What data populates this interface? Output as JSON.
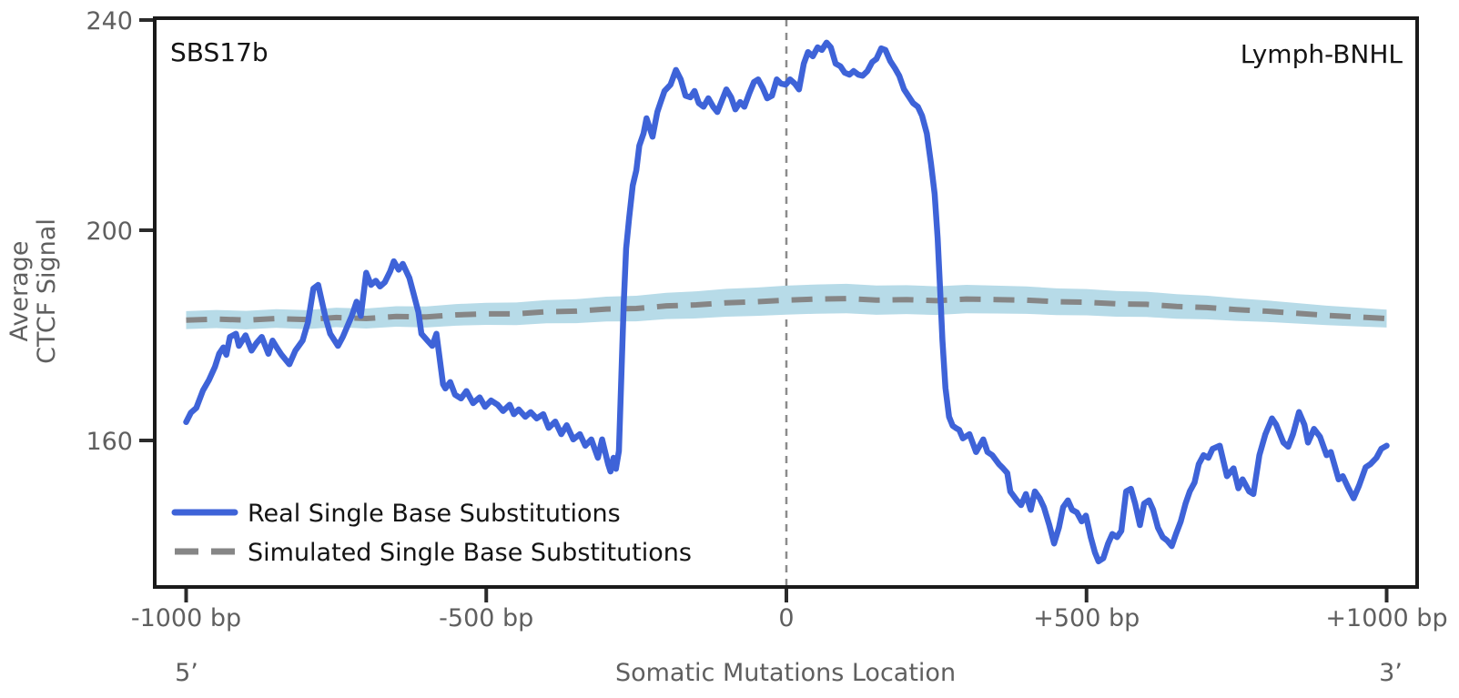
{
  "annotations": {
    "top_left": "SBS17b",
    "top_right": "Lymph-BNHL",
    "five_prime": "5’",
    "three_prime": "3’"
  },
  "colors": {
    "real_line": "#3E63D8",
    "simulated_line": "#868686",
    "confidence_band": "#B7DBE8",
    "spine": "#1a1a1a",
    "tick_mark": "#2b2b2b",
    "tick_label": "#5f5f5f",
    "zero_line": "#8c8c8c",
    "background": "#ffffff"
  },
  "chart_data": {
    "type": "line",
    "title": "",
    "xlabel": "Somatic Mutations Location",
    "ylabel": [
      "Average",
      "CTCF Signal"
    ],
    "xlim": [
      -1052,
      1051
    ],
    "ylim": [
      132.5,
      240.5
    ],
    "grid": false,
    "legend_position": "lower-left",
    "x_ticks": [
      {
        "value": -1000,
        "label": "-1000 bp"
      },
      {
        "value": -500,
        "label": "-500 bp"
      },
      {
        "value": 0,
        "label": "0"
      },
      {
        "value": 500,
        "label": "+500 bp"
      },
      {
        "value": 1000,
        "label": "+1000 bp"
      }
    ],
    "y_ticks": [
      {
        "value": 160,
        "label": "160"
      },
      {
        "value": 200,
        "label": "200"
      },
      {
        "value": 240,
        "label": "240"
      }
    ],
    "vline": {
      "x": 0,
      "style": "dashed",
      "color": "#8c8c8c"
    },
    "series": [
      {
        "name": "Real Single Base Substitutions",
        "style": "solid",
        "color": "#3E63D8",
        "linewidth": 6.5,
        "points": [
          [
            -1000,
            163.5
          ],
          [
            -992,
            165.3
          ],
          [
            -983,
            166.2
          ],
          [
            -972,
            169.5
          ],
          [
            -962,
            171.5
          ],
          [
            -952,
            174.0
          ],
          [
            -945,
            176.5
          ],
          [
            -938,
            177.7
          ],
          [
            -933,
            176.3
          ],
          [
            -927,
            179.7
          ],
          [
            -917,
            180.3
          ],
          [
            -912,
            178.0
          ],
          [
            -901,
            180.0
          ],
          [
            -891,
            177.1
          ],
          [
            -883,
            178.5
          ],
          [
            -874,
            179.7
          ],
          [
            -863,
            176.5
          ],
          [
            -856,
            179.0
          ],
          [
            -848,
            177.5
          ],
          [
            -841,
            176.3
          ],
          [
            -828,
            174.5
          ],
          [
            -818,
            177.1
          ],
          [
            -806,
            179.0
          ],
          [
            -797,
            182.5
          ],
          [
            -788,
            188.9
          ],
          [
            -780,
            189.6
          ],
          [
            -768,
            183.5
          ],
          [
            -760,
            180.3
          ],
          [
            -747,
            178.0
          ],
          [
            -739,
            179.7
          ],
          [
            -724,
            183.7
          ],
          [
            -716,
            186.4
          ],
          [
            -709,
            183.7
          ],
          [
            -700,
            191.9
          ],
          [
            -692,
            189.6
          ],
          [
            -684,
            190.4
          ],
          [
            -677,
            189.3
          ],
          [
            -669,
            190.1
          ],
          [
            -660,
            192.2
          ],
          [
            -654,
            194.1
          ],
          [
            -646,
            192.5
          ],
          [
            -639,
            193.6
          ],
          [
            -628,
            190.9
          ],
          [
            -621,
            187.9
          ],
          [
            -613,
            184.4
          ],
          [
            -608,
            180.3
          ],
          [
            -598,
            179.0
          ],
          [
            -590,
            178.0
          ],
          [
            -583,
            180.3
          ],
          [
            -572,
            170.7
          ],
          [
            -568,
            169.9
          ],
          [
            -560,
            171.1
          ],
          [
            -552,
            168.7
          ],
          [
            -542,
            168.0
          ],
          [
            -533,
            169.4
          ],
          [
            -522,
            167.1
          ],
          [
            -511,
            168.2
          ],
          [
            -502,
            166.4
          ],
          [
            -492,
            167.6
          ],
          [
            -481,
            166.8
          ],
          [
            -472,
            165.6
          ],
          [
            -461,
            166.8
          ],
          [
            -454,
            165.0
          ],
          [
            -446,
            165.9
          ],
          [
            -435,
            164.5
          ],
          [
            -426,
            165.4
          ],
          [
            -416,
            164.2
          ],
          [
            -405,
            165.0
          ],
          [
            -396,
            162.4
          ],
          [
            -385,
            163.6
          ],
          [
            -375,
            161.2
          ],
          [
            -366,
            162.9
          ],
          [
            -355,
            160.2
          ],
          [
            -344,
            161.2
          ],
          [
            -335,
            159.0
          ],
          [
            -325,
            160.2
          ],
          [
            -314,
            156.7
          ],
          [
            -307,
            160.2
          ],
          [
            -297,
            155.5
          ],
          [
            -293,
            154.1
          ],
          [
            -288,
            156.7
          ],
          [
            -284,
            154.6
          ],
          [
            -279,
            158.0
          ],
          [
            -275,
            172.0
          ],
          [
            -271,
            186.0
          ],
          [
            -267,
            196.5
          ],
          [
            -262,
            202.3
          ],
          [
            -256,
            208.5
          ],
          [
            -250,
            211.4
          ],
          [
            -245,
            216.1
          ],
          [
            -238,
            218.4
          ],
          [
            -233,
            221.3
          ],
          [
            -223,
            217.8
          ],
          [
            -215,
            222.5
          ],
          [
            -210,
            224.2
          ],
          [
            -203,
            226.5
          ],
          [
            -193,
            227.7
          ],
          [
            -184,
            230.5
          ],
          [
            -176,
            228.7
          ],
          [
            -168,
            225.6
          ],
          [
            -160,
            225.3
          ],
          [
            -153,
            226.5
          ],
          [
            -146,
            224.2
          ],
          [
            -138,
            223.5
          ],
          [
            -130,
            225.1
          ],
          [
            -122,
            223.5
          ],
          [
            -115,
            222.5
          ],
          [
            -107,
            224.8
          ],
          [
            -100,
            226.8
          ],
          [
            -92,
            225.3
          ],
          [
            -85,
            223.0
          ],
          [
            -77,
            224.4
          ],
          [
            -70,
            223.5
          ],
          [
            -62,
            226.0
          ],
          [
            -54,
            228.2
          ],
          [
            -47,
            228.7
          ],
          [
            -39,
            227.0
          ],
          [
            -32,
            225.1
          ],
          [
            -24,
            225.6
          ],
          [
            -16,
            228.7
          ],
          [
            -9,
            227.9
          ],
          [
            -1,
            227.7
          ],
          [
            6,
            228.7
          ],
          [
            14,
            227.9
          ],
          [
            21,
            226.8
          ],
          [
            29,
            231.7
          ],
          [
            36,
            233.9
          ],
          [
            44,
            233.1
          ],
          [
            52,
            234.8
          ],
          [
            59,
            234.3
          ],
          [
            67,
            235.7
          ],
          [
            74,
            234.8
          ],
          [
            82,
            231.7
          ],
          [
            90,
            231.2
          ],
          [
            97,
            230.0
          ],
          [
            105,
            229.6
          ],
          [
            112,
            230.3
          ],
          [
            120,
            229.6
          ],
          [
            127,
            229.4
          ],
          [
            135,
            230.3
          ],
          [
            143,
            232.0
          ],
          [
            150,
            232.6
          ],
          [
            158,
            234.6
          ],
          [
            165,
            234.3
          ],
          [
            173,
            232.2
          ],
          [
            181,
            230.8
          ],
          [
            188,
            229.4
          ],
          [
            196,
            226.8
          ],
          [
            203,
            225.6
          ],
          [
            211,
            224.2
          ],
          [
            219,
            223.5
          ],
          [
            226,
            221.8
          ],
          [
            234,
            218.4
          ],
          [
            241,
            212.6
          ],
          [
            247,
            206.9
          ],
          [
            252,
            198.5
          ],
          [
            256,
            189.0
          ],
          [
            260,
            179.0
          ],
          [
            265,
            170.0
          ],
          [
            271,
            164.5
          ],
          [
            277,
            162.8
          ],
          [
            282,
            162.4
          ],
          [
            288,
            162.0
          ],
          [
            294,
            160.4
          ],
          [
            305,
            161.2
          ],
          [
            316,
            157.8
          ],
          [
            328,
            160.2
          ],
          [
            335,
            157.8
          ],
          [
            343,
            157.2
          ],
          [
            354,
            155.5
          ],
          [
            361,
            154.7
          ],
          [
            368,
            153.8
          ],
          [
            373,
            150.3
          ],
          [
            384,
            148.6
          ],
          [
            391,
            147.7
          ],
          [
            399,
            149.8
          ],
          [
            407,
            146.8
          ],
          [
            414,
            150.3
          ],
          [
            422,
            149.0
          ],
          [
            429,
            147.3
          ],
          [
            438,
            143.9
          ],
          [
            446,
            140.4
          ],
          [
            454,
            143.4
          ],
          [
            461,
            147.3
          ],
          [
            469,
            148.6
          ],
          [
            476,
            146.8
          ],
          [
            484,
            146.3
          ],
          [
            492,
            144.6
          ],
          [
            499,
            145.7
          ],
          [
            507,
            141.6
          ],
          [
            514,
            138.7
          ],
          [
            520,
            137.0
          ],
          [
            528,
            137.6
          ],
          [
            536,
            140.4
          ],
          [
            543,
            142.2
          ],
          [
            551,
            141.6
          ],
          [
            558,
            142.8
          ],
          [
            566,
            150.3
          ],
          [
            574,
            150.8
          ],
          [
            581,
            148.0
          ],
          [
            589,
            143.9
          ],
          [
            596,
            148.0
          ],
          [
            604,
            148.6
          ],
          [
            611,
            146.8
          ],
          [
            619,
            143.4
          ],
          [
            627,
            141.6
          ],
          [
            634,
            141.0
          ],
          [
            642,
            139.9
          ],
          [
            649,
            142.2
          ],
          [
            657,
            144.6
          ],
          [
            665,
            148.0
          ],
          [
            672,
            150.3
          ],
          [
            680,
            152.0
          ],
          [
            687,
            155.5
          ],
          [
            695,
            157.2
          ],
          [
            703,
            156.7
          ],
          [
            710,
            158.4
          ],
          [
            722,
            159.0
          ],
          [
            734,
            153.2
          ],
          [
            745,
            154.7
          ],
          [
            753,
            150.9
          ],
          [
            760,
            152.6
          ],
          [
            771,
            150.3
          ],
          [
            778,
            149.8
          ],
          [
            788,
            157.2
          ],
          [
            798,
            161.2
          ],
          [
            809,
            164.2
          ],
          [
            816,
            163.0
          ],
          [
            828,
            159.6
          ],
          [
            836,
            158.8
          ],
          [
            844,
            161.2
          ],
          [
            854,
            165.4
          ],
          [
            863,
            163.0
          ],
          [
            869,
            159.6
          ],
          [
            879,
            162.2
          ],
          [
            889,
            160.7
          ],
          [
            900,
            157.2
          ],
          [
            907,
            157.8
          ],
          [
            920,
            152.6
          ],
          [
            927,
            153.2
          ],
          [
            936,
            151.0
          ],
          [
            945,
            149.0
          ],
          [
            954,
            151.4
          ],
          [
            965,
            154.9
          ],
          [
            973,
            155.5
          ],
          [
            983,
            156.7
          ],
          [
            991,
            158.4
          ],
          [
            1000,
            159.0
          ]
        ]
      },
      {
        "name": "Simulated Single Base Substitutions",
        "style": "dashed",
        "color": "#868686",
        "band_color": "#B7DBE8",
        "linewidth": 6,
        "points": [
          [
            -1000,
            182.9,
            1.7
          ],
          [
            -950,
            183.1,
            1.72
          ],
          [
            -900,
            182.9,
            1.75
          ],
          [
            -850,
            183.2,
            1.78
          ],
          [
            -800,
            183.0,
            1.8
          ],
          [
            -750,
            183.4,
            1.85
          ],
          [
            -700,
            183.2,
            1.9
          ],
          [
            -650,
            183.6,
            1.95
          ],
          [
            -600,
            183.5,
            2.0
          ],
          [
            -550,
            183.9,
            2.05
          ],
          [
            -500,
            184.1,
            2.1
          ],
          [
            -450,
            184.1,
            2.15
          ],
          [
            -400,
            184.5,
            2.2
          ],
          [
            -350,
            184.6,
            2.28
          ],
          [
            -300,
            185.0,
            2.35
          ],
          [
            -250,
            185.1,
            2.43
          ],
          [
            -200,
            185.6,
            2.5
          ],
          [
            -150,
            185.8,
            2.58
          ],
          [
            -100,
            186.2,
            2.65
          ],
          [
            -50,
            186.4,
            2.7
          ],
          [
            0,
            186.7,
            2.75
          ],
          [
            50,
            186.9,
            2.78
          ],
          [
            100,
            187.0,
            2.8
          ],
          [
            150,
            186.7,
            2.78
          ],
          [
            200,
            186.8,
            2.75
          ],
          [
            250,
            186.6,
            2.73
          ],
          [
            300,
            186.9,
            2.7
          ],
          [
            350,
            186.8,
            2.65
          ],
          [
            400,
            186.7,
            2.6
          ],
          [
            450,
            186.4,
            2.55
          ],
          [
            500,
            186.3,
            2.5
          ],
          [
            550,
            186.0,
            2.45
          ],
          [
            600,
            185.9,
            2.4
          ],
          [
            650,
            185.5,
            2.33
          ],
          [
            700,
            185.3,
            2.25
          ],
          [
            750,
            184.9,
            2.15
          ],
          [
            800,
            184.6,
            2.05
          ],
          [
            850,
            184.2,
            1.95
          ],
          [
            900,
            183.8,
            1.85
          ],
          [
            950,
            183.5,
            1.78
          ],
          [
            1000,
            183.2,
            1.7
          ]
        ]
      }
    ]
  }
}
